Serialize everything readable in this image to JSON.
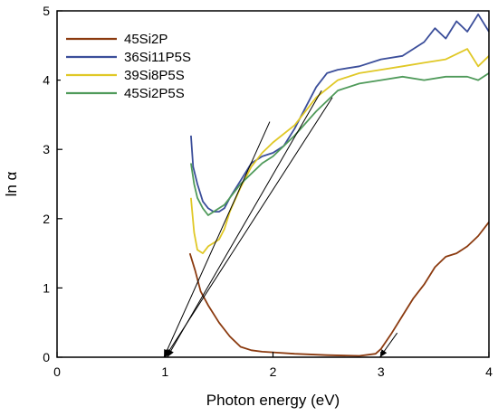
{
  "chart_data": {
    "type": "line",
    "title": "",
    "xlabel": "Photon energy (eV)",
    "ylabel": "ln α",
    "xlim": [
      0,
      4
    ],
    "ylim": [
      0,
      5
    ],
    "xticks": [
      0,
      1,
      2,
      3,
      4
    ],
    "yticks": [
      0,
      1,
      2,
      3,
      4,
      5
    ],
    "grid": false,
    "legend_position": "top-left",
    "series": [
      {
        "name": "45Si2P",
        "color": "#8b3a0f",
        "x": [
          1.23,
          1.28,
          1.33,
          1.4,
          1.5,
          1.6,
          1.7,
          1.8,
          1.9,
          2.0,
          2.2,
          2.5,
          2.8,
          2.95,
          3.0,
          3.1,
          3.2,
          3.3,
          3.4,
          3.5,
          3.6,
          3.7,
          3.8,
          3.9,
          4.0
        ],
        "y": [
          1.5,
          1.25,
          0.95,
          0.75,
          0.5,
          0.3,
          0.15,
          0.1,
          0.08,
          0.07,
          0.05,
          0.03,
          0.02,
          0.05,
          0.12,
          0.35,
          0.6,
          0.85,
          1.05,
          1.3,
          1.45,
          1.5,
          1.6,
          1.75,
          1.95
        ]
      },
      {
        "name": "36Si11P5S",
        "color": "#3b4e9a",
        "x": [
          1.24,
          1.26,
          1.3,
          1.35,
          1.4,
          1.45,
          1.5,
          1.55,
          1.6,
          1.7,
          1.8,
          1.9,
          2.0,
          2.1,
          2.2,
          2.3,
          2.4,
          2.5,
          2.6,
          2.8,
          3.0,
          3.2,
          3.4,
          3.5,
          3.6,
          3.7,
          3.8,
          3.9,
          4.0
        ],
        "y": [
          3.2,
          2.75,
          2.5,
          2.25,
          2.15,
          2.1,
          2.1,
          2.15,
          2.3,
          2.55,
          2.8,
          2.9,
          2.95,
          3.05,
          3.3,
          3.6,
          3.9,
          4.1,
          4.15,
          4.2,
          4.3,
          4.35,
          4.55,
          4.75,
          4.6,
          4.85,
          4.7,
          4.95,
          4.7
        ]
      },
      {
        "name": "39Si8P5S",
        "color": "#e0c826",
        "x": [
          1.24,
          1.27,
          1.3,
          1.35,
          1.4,
          1.45,
          1.5,
          1.55,
          1.6,
          1.7,
          1.8,
          1.9,
          2.0,
          2.2,
          2.4,
          2.6,
          2.8,
          3.0,
          3.2,
          3.4,
          3.6,
          3.8,
          3.9,
          4.0
        ],
        "y": [
          2.3,
          1.8,
          1.55,
          1.5,
          1.6,
          1.65,
          1.7,
          1.85,
          2.1,
          2.45,
          2.75,
          2.95,
          3.1,
          3.35,
          3.75,
          4.0,
          4.1,
          4.15,
          4.2,
          4.25,
          4.3,
          4.45,
          4.2,
          4.35
        ]
      },
      {
        "name": "45Si2P5S",
        "color": "#4f9a5a",
        "x": [
          1.24,
          1.27,
          1.3,
          1.35,
          1.4,
          1.45,
          1.5,
          1.55,
          1.6,
          1.7,
          1.8,
          1.9,
          2.0,
          2.2,
          2.4,
          2.6,
          2.8,
          3.0,
          3.2,
          3.4,
          3.6,
          3.8,
          3.9,
          4.0
        ],
        "y": [
          2.8,
          2.5,
          2.3,
          2.15,
          2.05,
          2.1,
          2.15,
          2.2,
          2.3,
          2.5,
          2.65,
          2.8,
          2.9,
          3.2,
          3.55,
          3.85,
          3.95,
          4.0,
          4.05,
          4.0,
          4.05,
          4.05,
          4.0,
          4.1
        ]
      }
    ],
    "annotations": [
      {
        "name": "tangent-line-1",
        "x": [
          0.99,
          1.97
        ],
        "y": [
          0,
          3.4
        ]
      },
      {
        "name": "tangent-line-2",
        "x": [
          1.0,
          2.55
        ],
        "y": [
          0,
          3.75
        ]
      },
      {
        "name": "tangent-line-3",
        "x": [
          1.02,
          2.45
        ],
        "y": [
          0,
          3.85
        ]
      },
      {
        "name": "tangent-line-4",
        "x": [
          2.99,
          3.15
        ],
        "y": [
          0,
          0.35
        ]
      }
    ]
  }
}
